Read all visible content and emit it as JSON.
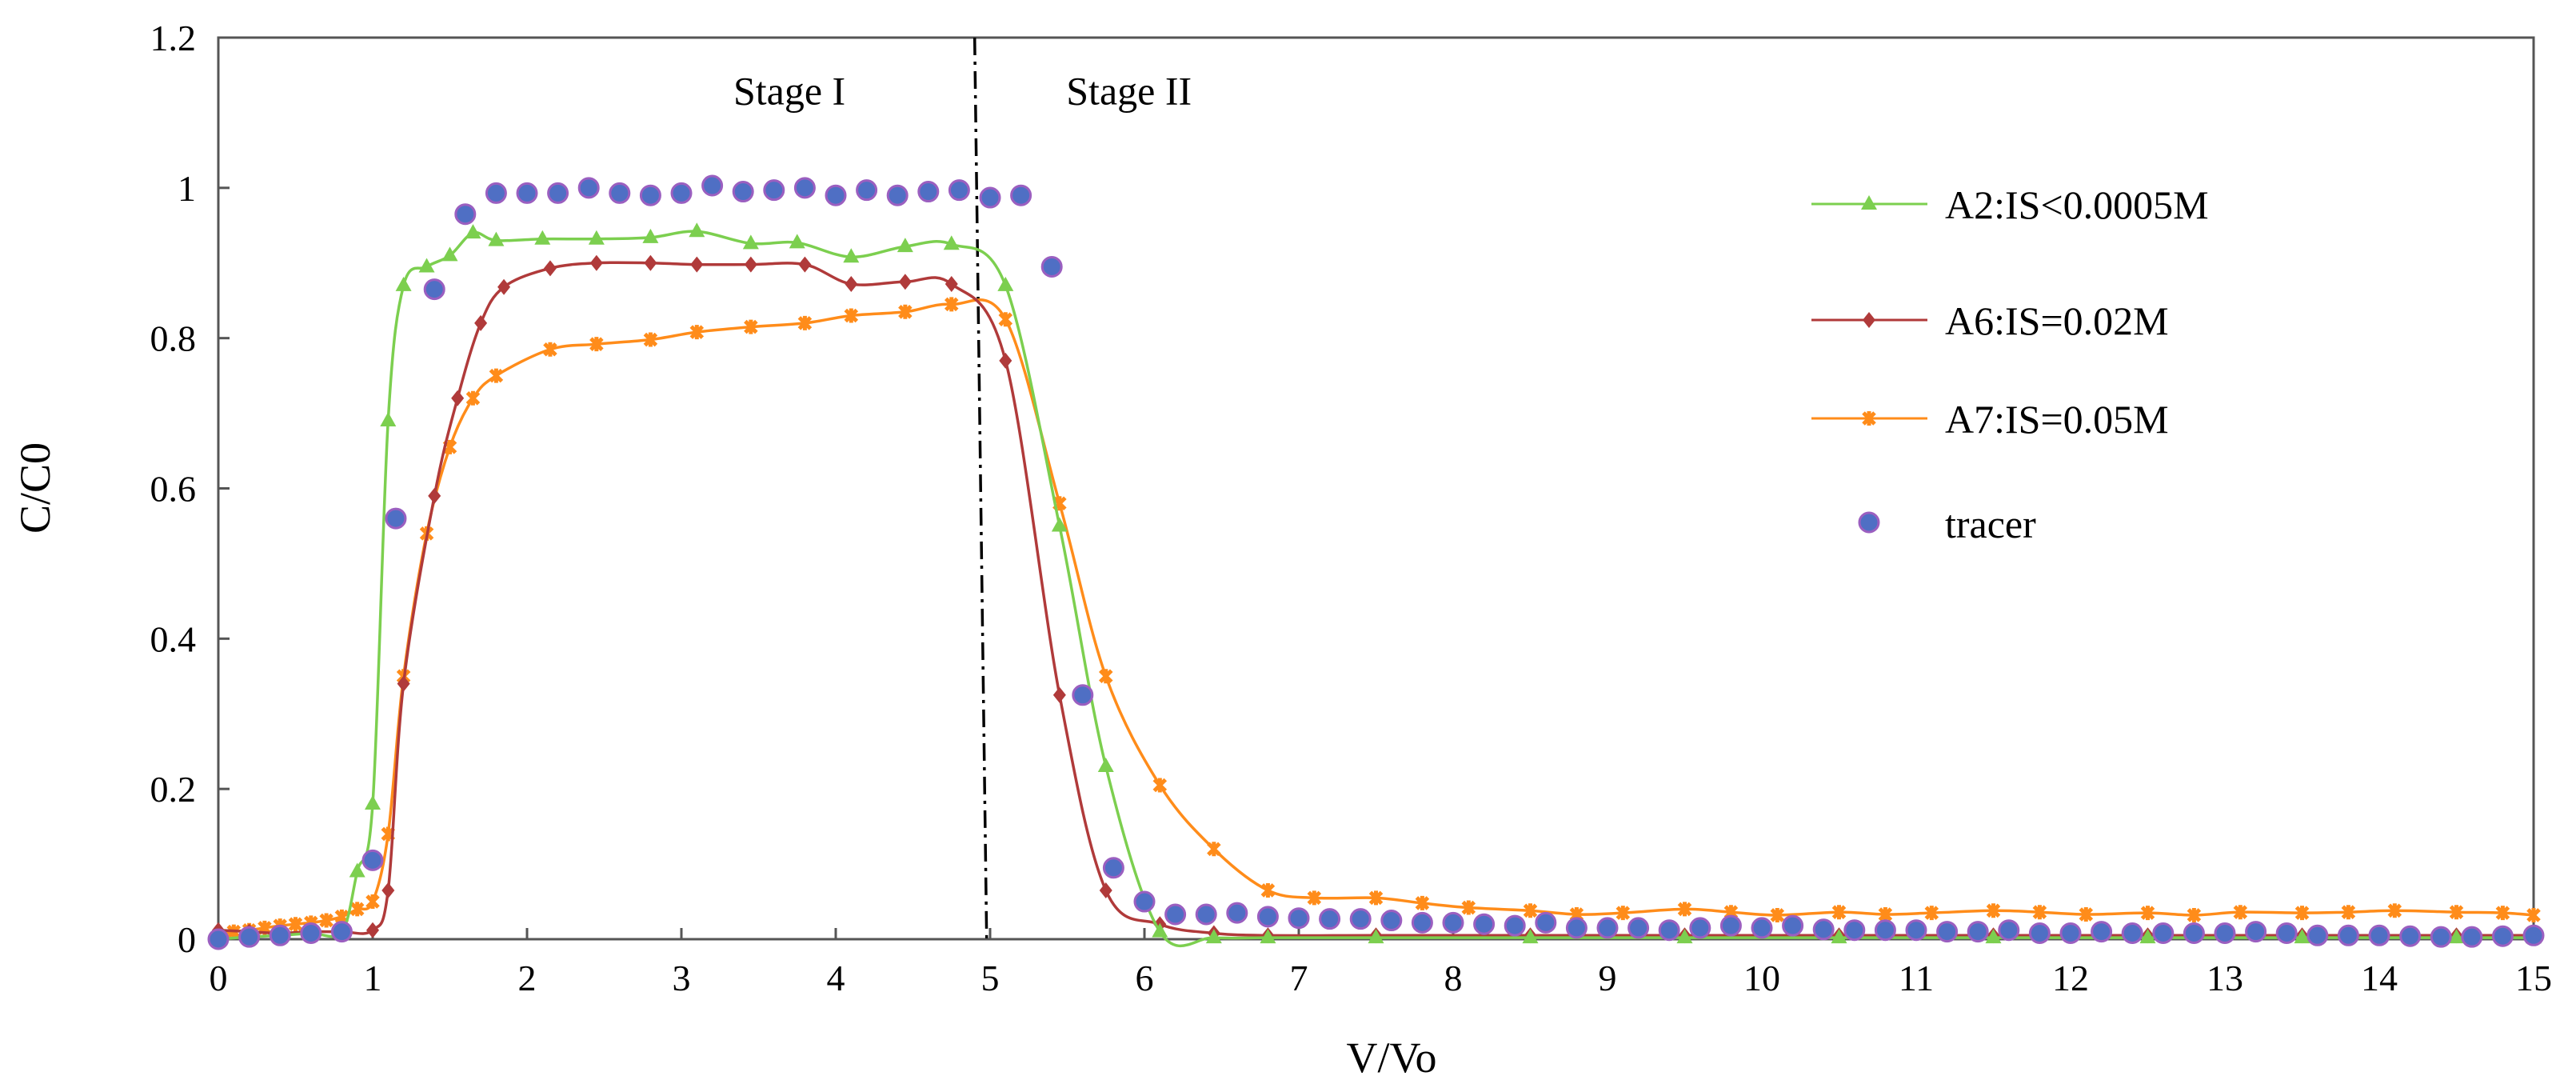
{
  "chart_data": {
    "type": "scatter",
    "xlabel": "V/Vo",
    "ylabel": "C/C0",
    "xlim": [
      0,
      15
    ],
    "ylim": [
      0,
      1.2
    ],
    "xticks": [
      0,
      1,
      2,
      3,
      4,
      5,
      6,
      7,
      8,
      9,
      10,
      11,
      12,
      13,
      14,
      15
    ],
    "yticks": [
      0,
      0.2,
      0.4,
      0.6,
      0.8,
      1,
      1.2
    ],
    "ytick_labels": [
      "0",
      "0.2",
      "0.4",
      "0.6",
      "0.8",
      "1",
      "1.2"
    ],
    "grid": false,
    "legend_position": "right",
    "stage_divider_x": 4.9,
    "annotations": [
      {
        "text": "Stage I",
        "x": 3.7,
        "y": 1.13
      },
      {
        "text": "Stage II",
        "x": 5.9,
        "y": 1.13
      }
    ],
    "series": [
      {
        "name": "A2:IS<0.0005M",
        "color": "#7ccf4f",
        "marker": "triangle",
        "line": true,
        "x": [
          0,
          0.2,
          0.4,
          0.6,
          0.8,
          0.9,
          1.0,
          1.1,
          1.2,
          1.35,
          1.5,
          1.65,
          1.8,
          2.1,
          2.45,
          2.8,
          3.1,
          3.45,
          3.75,
          4.1,
          4.45,
          4.75,
          5.1,
          5.45,
          5.75,
          6.1,
          6.45,
          6.8,
          7.5,
          8.5,
          9.5,
          10.5,
          11.5,
          12.5,
          13.5,
          14.5,
          15
        ],
        "y": [
          0,
          0.003,
          0.005,
          0.008,
          0.01,
          0.09,
          0.18,
          0.69,
          0.87,
          0.895,
          0.91,
          0.94,
          0.93,
          0.932,
          0.932,
          0.934,
          0.942,
          0.926,
          0.927,
          0.908,
          0.922,
          0.925,
          0.87,
          0.55,
          0.23,
          0.01,
          0.002,
          0.002,
          0.002,
          0.002,
          0.002,
          0.002,
          0.002,
          0.002,
          0.002,
          0.002,
          0.002
        ]
      },
      {
        "name": "A6:IS=0.02M",
        "color": "#b03a3a",
        "marker": "diamond",
        "line": true,
        "x": [
          0,
          0.2,
          0.4,
          0.6,
          0.8,
          1.0,
          1.1,
          1.2,
          1.4,
          1.55,
          1.7,
          1.85,
          2.15,
          2.45,
          2.8,
          3.1,
          3.45,
          3.8,
          4.1,
          4.45,
          4.75,
          5.1,
          5.45,
          5.75,
          6.1,
          6.45,
          6.8,
          7.5,
          8.5,
          9.5,
          10.5,
          11.5,
          12.5,
          13.5,
          14.5,
          15
        ],
        "y": [
          0.012,
          0.01,
          0.008,
          0.01,
          0.01,
          0.012,
          0.065,
          0.34,
          0.59,
          0.72,
          0.82,
          0.868,
          0.893,
          0.9,
          0.9,
          0.898,
          0.898,
          0.898,
          0.872,
          0.875,
          0.872,
          0.77,
          0.325,
          0.065,
          0.02,
          0.008,
          0.005,
          0.005,
          0.005,
          0.005,
          0.005,
          0.005,
          0.005,
          0.005,
          0.005,
          0.005
        ]
      },
      {
        "name": "A7:IS=0.05M",
        "color": "#ff8c1a",
        "marker": "x",
        "line": true,
        "x": [
          0,
          0.1,
          0.2,
          0.3,
          0.4,
          0.5,
          0.6,
          0.7,
          0.8,
          0.9,
          1.0,
          1.1,
          1.2,
          1.35,
          1.5,
          1.65,
          1.8,
          2.15,
          2.45,
          2.8,
          3.1,
          3.45,
          3.8,
          4.1,
          4.45,
          4.75,
          5.1,
          5.45,
          5.75,
          6.1,
          6.45,
          6.8,
          7.1,
          7.5,
          7.8,
          8.1,
          8.5,
          8.8,
          9.1,
          9.5,
          9.8,
          10.1,
          10.5,
          10.8,
          11.1,
          11.5,
          11.8,
          12.1,
          12.5,
          12.8,
          13.1,
          13.5,
          13.8,
          14.1,
          14.5,
          14.8,
          15
        ],
        "y": [
          0.005,
          0.01,
          0.012,
          0.015,
          0.018,
          0.02,
          0.022,
          0.025,
          0.03,
          0.04,
          0.05,
          0.14,
          0.35,
          0.54,
          0.655,
          0.72,
          0.75,
          0.785,
          0.792,
          0.798,
          0.808,
          0.815,
          0.82,
          0.83,
          0.835,
          0.845,
          0.825,
          0.58,
          0.35,
          0.205,
          0.12,
          0.065,
          0.055,
          0.055,
          0.048,
          0.042,
          0.038,
          0.033,
          0.035,
          0.04,
          0.036,
          0.032,
          0.036,
          0.033,
          0.035,
          0.038,
          0.036,
          0.033,
          0.035,
          0.032,
          0.036,
          0.035,
          0.036,
          0.038,
          0.036,
          0.035,
          0.032
        ]
      },
      {
        "name": "tracer",
        "color": "#4f6fc4",
        "marker": "circle",
        "line": false,
        "x": [
          0,
          0.2,
          0.4,
          0.6,
          0.8,
          1.0,
          1.15,
          1.4,
          1.6,
          1.8,
          2.0,
          2.2,
          2.4,
          2.6,
          2.8,
          3.0,
          3.2,
          3.4,
          3.6,
          3.8,
          4.0,
          4.2,
          4.4,
          4.6,
          4.8,
          5.0,
          5.2,
          5.4,
          5.6,
          5.8,
          6.0,
          6.2,
          6.4,
          6.6,
          6.8,
          7.0,
          7.2,
          7.4,
          7.6,
          7.8,
          8.0,
          8.2,
          8.4,
          8.6,
          8.8,
          9.0,
          9.2,
          9.4,
          9.6,
          9.8,
          10.0,
          10.2,
          10.4,
          10.6,
          10.8,
          11.0,
          11.2,
          11.4,
          11.6,
          11.8,
          12.0,
          12.2,
          12.4,
          12.6,
          12.8,
          13.0,
          13.2,
          13.4,
          13.6,
          13.8,
          14.0,
          14.2,
          14.4,
          14.6,
          14.8,
          15.0
        ],
        "y": [
          0,
          0.003,
          0.005,
          0.008,
          0.01,
          0.105,
          0.56,
          0.865,
          0.965,
          0.993,
          0.993,
          0.993,
          1.0,
          0.993,
          0.99,
          0.993,
          1.003,
          0.995,
          0.997,
          1.0,
          0.99,
          0.997,
          0.99,
          0.995,
          0.997,
          0.987,
          0.99,
          0.895,
          0.325,
          0.095,
          0.05,
          0.033,
          0.033,
          0.035,
          0.03,
          0.028,
          0.027,
          0.027,
          0.025,
          0.022,
          0.022,
          0.02,
          0.018,
          0.022,
          0.015,
          0.015,
          0.015,
          0.012,
          0.015,
          0.018,
          0.015,
          0.018,
          0.013,
          0.012,
          0.012,
          0.012,
          0.01,
          0.01,
          0.012,
          0.008,
          0.008,
          0.01,
          0.008,
          0.008,
          0.008,
          0.008,
          0.01,
          0.008,
          0.005,
          0.005,
          0.005,
          0.004,
          0.003,
          0.003,
          0.004,
          0.005
        ]
      }
    ]
  }
}
